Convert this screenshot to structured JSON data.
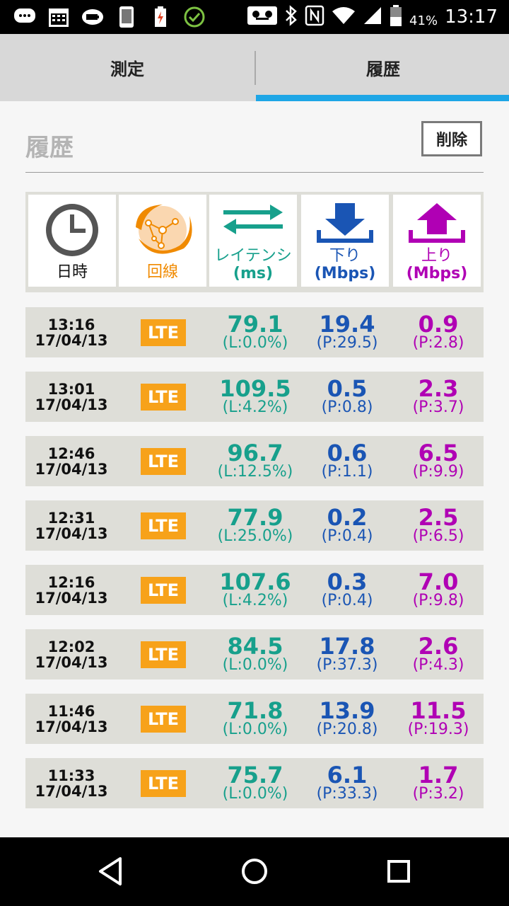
{
  "status_bar": {
    "battery_percent": "41%",
    "time": "13:17",
    "left_icons": [
      "messages-icon",
      "calendar-icon",
      "battery-saver-icon",
      "phone-icon",
      "battery-alert-icon",
      "check-circle-icon"
    ],
    "right_icons": [
      "voicemail-icon",
      "bluetooth-icon",
      "nfc-icon",
      "wifi-icon",
      "signal-icon",
      "battery-icon"
    ]
  },
  "tabs": [
    {
      "label": "測定",
      "active": false
    },
    {
      "label": "履歴",
      "active": true
    }
  ],
  "page": {
    "title": "履歴",
    "delete_label": "削除"
  },
  "columns": [
    {
      "label": "日時",
      "icon": "clock-icon",
      "color": "#111111"
    },
    {
      "label": "回線",
      "icon": "network-globe-icon",
      "color": "#f08a00"
    },
    {
      "label": "レイテンシ",
      "unit": "(ms)",
      "icon": "latency-arrows-icon",
      "color": "#17a08c"
    },
    {
      "label": "下り",
      "unit": "(Mbps)",
      "icon": "download-icon",
      "color": "#1a55b4"
    },
    {
      "label": "上り",
      "unit": "(Mbps)",
      "icon": "upload-icon",
      "color": "#b000b4"
    }
  ],
  "rows": [
    {
      "time": "13:16",
      "date": "17/04/13",
      "line": "LTE",
      "latency": "79.1",
      "loss": "(L:0.0%)",
      "down": "19.4",
      "down_peak": "(P:29.5)",
      "up": "0.9",
      "up_peak": "(P:2.8)"
    },
    {
      "time": "13:01",
      "date": "17/04/13",
      "line": "LTE",
      "latency": "109.5",
      "loss": "(L:4.2%)",
      "down": "0.5",
      "down_peak": "(P:0.8)",
      "up": "2.3",
      "up_peak": "(P:3.7)"
    },
    {
      "time": "12:46",
      "date": "17/04/13",
      "line": "LTE",
      "latency": "96.7",
      "loss": "(L:12.5%)",
      "down": "0.6",
      "down_peak": "(P:1.1)",
      "up": "6.5",
      "up_peak": "(P:9.9)"
    },
    {
      "time": "12:31",
      "date": "17/04/13",
      "line": "LTE",
      "latency": "77.9",
      "loss": "(L:25.0%)",
      "down": "0.2",
      "down_peak": "(P:0.4)",
      "up": "2.5",
      "up_peak": "(P:6.5)"
    },
    {
      "time": "12:16",
      "date": "17/04/13",
      "line": "LTE",
      "latency": "107.6",
      "loss": "(L:4.2%)",
      "down": "0.3",
      "down_peak": "(P:0.4)",
      "up": "7.0",
      "up_peak": "(P:9.8)"
    },
    {
      "time": "12:02",
      "date": "17/04/13",
      "line": "LTE",
      "latency": "84.5",
      "loss": "(L:0.0%)",
      "down": "17.8",
      "down_peak": "(P:37.3)",
      "up": "2.6",
      "up_peak": "(P:4.3)"
    },
    {
      "time": "11:46",
      "date": "17/04/13",
      "line": "LTE",
      "latency": "71.8",
      "loss": "(L:0.0%)",
      "down": "13.9",
      "down_peak": "(P:20.8)",
      "up": "11.5",
      "up_peak": "(P:19.3)"
    },
    {
      "time": "11:33",
      "date": "17/04/13",
      "line": "LTE",
      "latency": "75.7",
      "loss": "(L:0.0%)",
      "down": "6.1",
      "down_peak": "(P:33.3)",
      "up": "1.7",
      "up_peak": "(P:3.2)"
    }
  ],
  "nav": {
    "icons": [
      "back-icon",
      "home-icon",
      "recents-icon"
    ]
  }
}
